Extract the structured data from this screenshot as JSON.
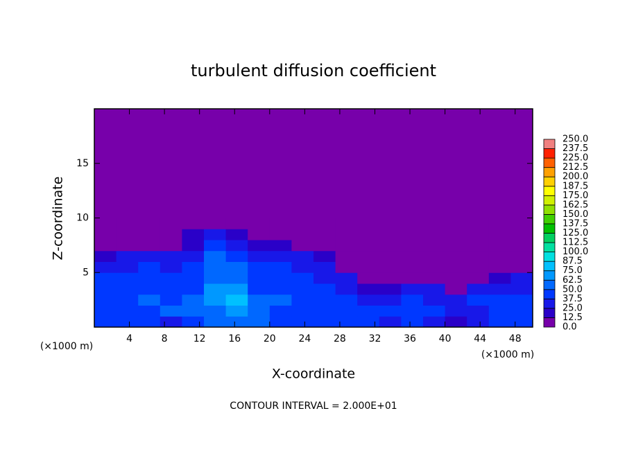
{
  "chart_data": {
    "type": "heatmap",
    "title": "turbulent diffusion coefficient",
    "xlabel": "X-coordinate",
    "ylabel": "Z-coordinate",
    "x_unit": "(×1000 m)",
    "y_unit": "(×1000 m)",
    "annotation": "CONTOUR INTERVAL = 2.000E+01",
    "xlim": [
      0,
      50
    ],
    "ylim": [
      0,
      20
    ],
    "xticks": [
      4,
      8,
      12,
      16,
      20,
      24,
      28,
      32,
      36,
      40,
      44,
      48
    ],
    "yticks": [
      5,
      10,
      15
    ],
    "x_bins": [
      0,
      2.5,
      5,
      7.5,
      10,
      12.5,
      15,
      17.5,
      20,
      22.5,
      25,
      27.5,
      30,
      32.5,
      35,
      37.5,
      40,
      42.5,
      45,
      47.5,
      50
    ],
    "z_bins": [
      0,
      1,
      2,
      3,
      4,
      5,
      6,
      7,
      8,
      9,
      10
    ],
    "z": [
      [
        40,
        45,
        40,
        35,
        45,
        50,
        60,
        50,
        45,
        40,
        45,
        40,
        40,
        35,
        40,
        35,
        20,
        30,
        40,
        40
      ],
      [
        45,
        40,
        45,
        50,
        50,
        60,
        70,
        55,
        45,
        45,
        40,
        40,
        40,
        40,
        45,
        40,
        30,
        35,
        45,
        45
      ],
      [
        40,
        45,
        50,
        40,
        50,
        65,
        75,
        50,
        50,
        45,
        45,
        40,
        35,
        35,
        40,
        35,
        35,
        40,
        40,
        40
      ],
      [
        40,
        40,
        45,
        45,
        45,
        70,
        65,
        45,
        45,
        40,
        40,
        35,
        20,
        15,
        25,
        30,
        10,
        30,
        35,
        35
      ],
      [
        40,
        40,
        40,
        40,
        40,
        60,
        55,
        40,
        45,
        40,
        35,
        25,
        0,
        0,
        10,
        5,
        0,
        0,
        15,
        25
      ],
      [
        35,
        35,
        40,
        35,
        40,
        55,
        50,
        40,
        40,
        35,
        30,
        10,
        0,
        0,
        0,
        0,
        0,
        0,
        0,
        5
      ],
      [
        20,
        25,
        25,
        30,
        35,
        50,
        45,
        35,
        35,
        30,
        20,
        0,
        0,
        0,
        0,
        0,
        0,
        0,
        0,
        0
      ],
      [
        0,
        0,
        0,
        0,
        20,
        40,
        35,
        20,
        15,
        5,
        0,
        0,
        0,
        0,
        0,
        0,
        0,
        0,
        0,
        0
      ],
      [
        0,
        0,
        0,
        0,
        15,
        30,
        20,
        10,
        0,
        0,
        0,
        0,
        0,
        0,
        0,
        0,
        0,
        0,
        0,
        0
      ],
      [
        0,
        0,
        0,
        0,
        5,
        10,
        5,
        0,
        0,
        0,
        0,
        0,
        0,
        0,
        0,
        0,
        0,
        0,
        0,
        0
      ]
    ],
    "levels": [
      {
        "value": 0,
        "label": "0.0"
      },
      {
        "value": 12.5,
        "label": "12.5"
      },
      {
        "value": 25,
        "label": "25.0"
      },
      {
        "value": 37.5,
        "label": "37.5"
      },
      {
        "value": 50,
        "label": "50.0"
      },
      {
        "value": 62.5,
        "label": "62.5"
      },
      {
        "value": 75,
        "label": "75.0"
      },
      {
        "value": 87.5,
        "label": "87.5"
      },
      {
        "value": 100,
        "label": "100.0"
      },
      {
        "value": 112.5,
        "label": "112.5"
      },
      {
        "value": 125,
        "label": "125.0"
      },
      {
        "value": 137.5,
        "label": "137.5"
      },
      {
        "value": 150,
        "label": "150.0"
      },
      {
        "value": 162.5,
        "label": "162.5"
      },
      {
        "value": 175,
        "label": "175.0"
      },
      {
        "value": 187.5,
        "label": "187.5"
      },
      {
        "value": 200,
        "label": "200.0"
      },
      {
        "value": 212.5,
        "label": "212.5"
      },
      {
        "value": 225,
        "label": "225.0"
      },
      {
        "value": 237.5,
        "label": "237.5"
      },
      {
        "value": 250,
        "label": "250.0"
      }
    ],
    "colors": [
      "#7700aa",
      "#2a00c8",
      "#1818e8",
      "#0038ff",
      "#0068ff",
      "#0098ff",
      "#00c0ff",
      "#00e0e0",
      "#00e0a0",
      "#00d060",
      "#00c000",
      "#40d000",
      "#90e000",
      "#d0f000",
      "#ffff00",
      "#ffd000",
      "#ffa000",
      "#ff6000",
      "#ff2000",
      "#f08080"
    ]
  }
}
